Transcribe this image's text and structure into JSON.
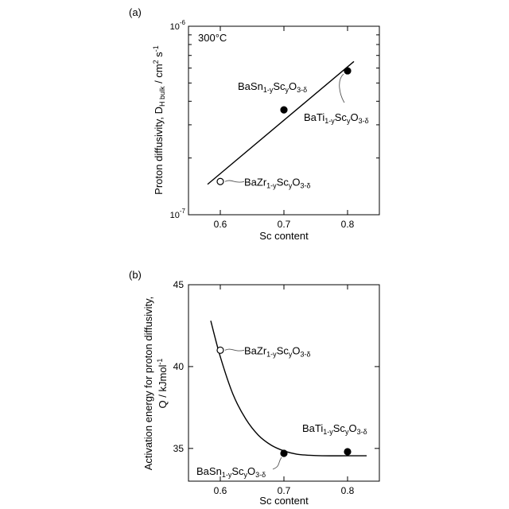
{
  "chart_data": [
    {
      "type": "scatter",
      "panel_label": "(a)",
      "annotation": "300°C",
      "xlabel": "Sc content",
      "ylabel": "Proton diffusivity, D_{H bulk} / cm^2 s^-1",
      "xlim": [
        0.55,
        0.85
      ],
      "ylim": [
        1e-07,
        1e-06
      ],
      "yscale": "log",
      "xticks": [
        0.6,
        0.7,
        0.8
      ],
      "yticks": [
        {
          "value": 1e-07,
          "label": "10^-7"
        },
        {
          "value": 1e-06,
          "label": "10^-6"
        }
      ],
      "points": [
        {
          "label": "BaZr1-yScyO3-δ",
          "x": 0.6,
          "y": 1.5e-07,
          "filled": false
        },
        {
          "label": "BaSn1-yScyO3-δ",
          "x": 0.7,
          "y": 3.6e-07,
          "filled": true
        },
        {
          "label": "BaTi1-yScyO3-δ",
          "x": 0.8,
          "y": 5.8e-07,
          "filled": true
        }
      ],
      "fit_line": {
        "x": [
          0.58,
          0.81
        ],
        "y": [
          1.45e-07,
          6.5e-07
        ]
      }
    },
    {
      "type": "scatter",
      "panel_label": "(b)",
      "xlabel": "Sc content",
      "ylabel": "Activation energy for proton diffusivity, Q / kJmol^-1",
      "xlim": [
        0.55,
        0.85
      ],
      "ylim": [
        33,
        45
      ],
      "xticks": [
        0.6,
        0.7,
        0.8
      ],
      "yticks": [
        35,
        40,
        45
      ],
      "points": [
        {
          "label": "BaZr1-yScyO3-δ",
          "x": 0.6,
          "y": 41.0,
          "filled": false
        },
        {
          "label": "BaSn1-yScyO3-δ",
          "x": 0.7,
          "y": 34.7,
          "filled": true
        },
        {
          "label": "BaTi1-yScyO3-δ",
          "x": 0.8,
          "y": 34.8,
          "filled": true
        }
      ],
      "fit_curve": {
        "x": [
          0.585,
          0.6,
          0.62,
          0.64,
          0.66,
          0.68,
          0.7,
          0.72,
          0.74,
          0.76,
          0.8,
          0.83
        ],
        "y": [
          42.8,
          40.6,
          38.3,
          36.8,
          35.8,
          35.2,
          34.85,
          34.65,
          34.58,
          34.55,
          34.55,
          34.55
        ]
      }
    }
  ]
}
